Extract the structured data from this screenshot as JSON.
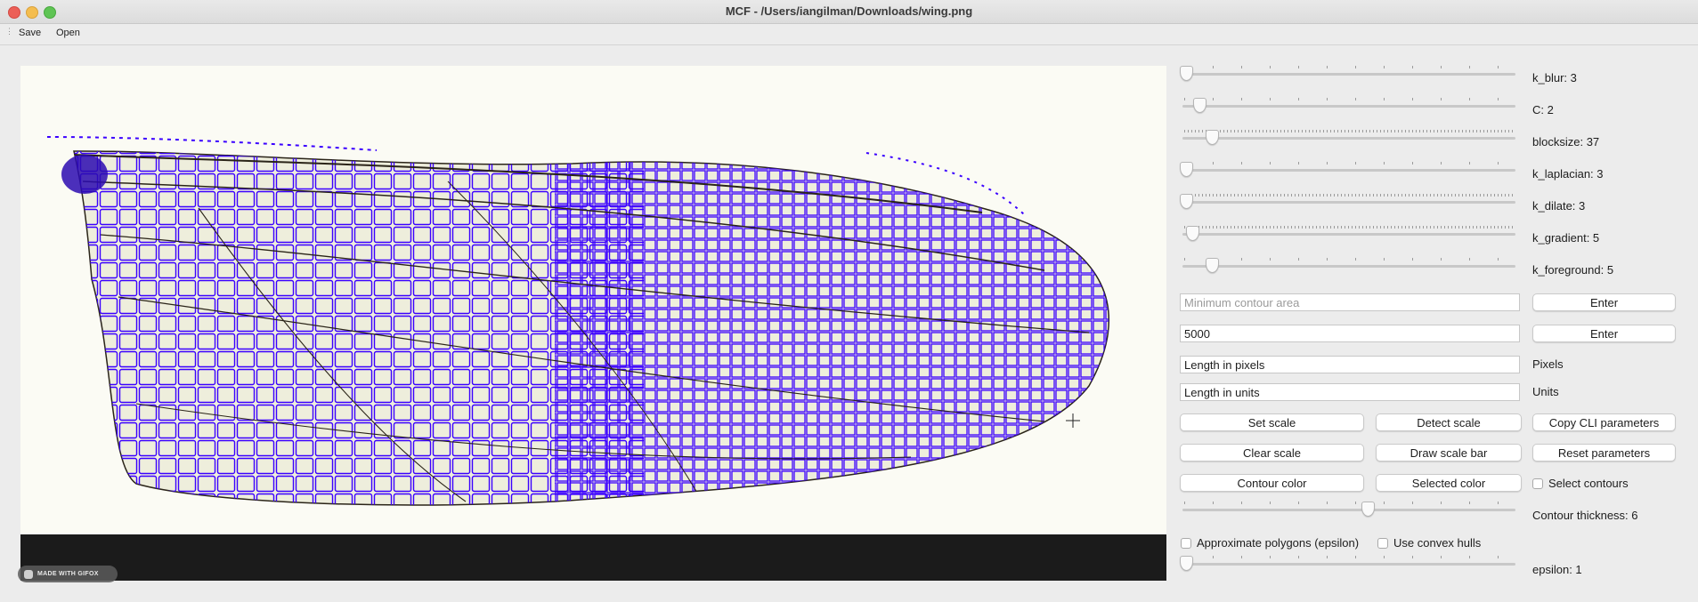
{
  "window": {
    "title": "MCF - /Users/iangilman/Downloads/wing.png"
  },
  "toolbar": {
    "save_label": "Save",
    "open_label": "Open"
  },
  "watermark": {
    "text": "MADE WITH GIFOX"
  },
  "sliders": [
    {
      "label": "k_blur: 3",
      "fraction": 0.0
    },
    {
      "label": "C: 2",
      "fraction": 0.04
    },
    {
      "label": "blocksize: 37",
      "fraction": 0.08
    },
    {
      "label": "k_laplacian: 3",
      "fraction": 0.0
    },
    {
      "label": "k_dilate: 3",
      "fraction": 0.0
    },
    {
      "label": "k_gradient: 5",
      "fraction": 0.02
    },
    {
      "label": "k_foreground: 5",
      "fraction": 0.08
    }
  ],
  "inputs": {
    "min_contour_placeholder": "Minimum contour area",
    "contour_value": "5000",
    "length_pixels_value": "Length in pixels",
    "length_units_value": "Length in units"
  },
  "buttons": {
    "enter_1": "Enter",
    "enter_2": "Enter",
    "set_scale": "Set scale",
    "detect_scale": "Detect scale",
    "copy_cli": "Copy CLI parameters",
    "clear_scale": "Clear scale",
    "draw_scale_bar": "Draw scale bar",
    "reset_parameters": "Reset parameters",
    "contour_color": "Contour color",
    "selected_color": "Selected color"
  },
  "labels": {
    "pixels": "Pixels",
    "units": "Units"
  },
  "checkboxes": {
    "select_contours": {
      "label": "Select contours",
      "checked": false
    },
    "approx_polygons": {
      "label": "Approximate polygons (epsilon)",
      "checked": false
    },
    "convex_hulls": {
      "label": "Use convex hulls",
      "checked": false
    }
  },
  "contour_thickness": {
    "label": "Contour thickness: 6",
    "fraction": 0.56
  },
  "epsilon": {
    "label": "epsilon: 1",
    "fraction": 0.0
  },
  "colors": {
    "contour": "#3a00ff",
    "wing_vein": "#2a2418",
    "canvas_bg": "#1b1b1b",
    "image_bg": "#fbfbf4"
  },
  "icons": [
    "plus-cursor-icon",
    "gifox-logo-icon"
  ]
}
